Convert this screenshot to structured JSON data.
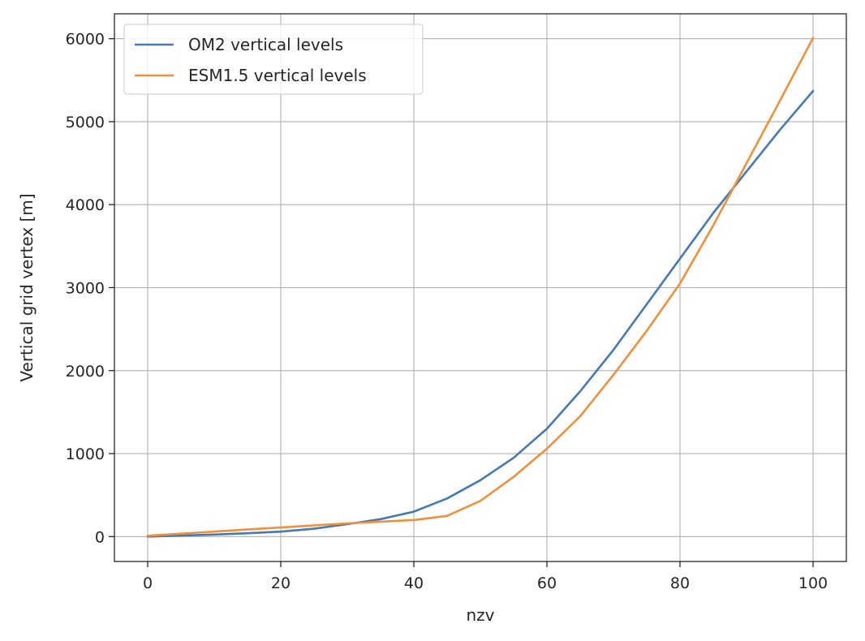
{
  "chart_data": {
    "type": "line",
    "title": "",
    "xlabel": "nzv",
    "ylabel": "Vertical grid vertex [m]",
    "xlim": [
      -5,
      105
    ],
    "ylim": [
      -300,
      6300
    ],
    "xticks": [
      0,
      20,
      40,
      60,
      80,
      100
    ],
    "yticks": [
      0,
      1000,
      2000,
      3000,
      4000,
      5000,
      6000
    ],
    "grid": true,
    "legend_position": "upper-left",
    "series": [
      {
        "name": "OM2 vertical levels",
        "color": "#4679b0",
        "x": [
          0,
          5,
          10,
          15,
          20,
          25,
          30,
          35,
          40,
          45,
          50,
          55,
          60,
          65,
          70,
          75,
          80,
          85,
          90,
          95,
          100
        ],
        "y": [
          0,
          12,
          25,
          40,
          60,
          95,
          150,
          210,
          300,
          460,
          680,
          950,
          1300,
          1750,
          2250,
          2800,
          3350,
          3900,
          4400,
          4900,
          5370
        ]
      },
      {
        "name": "ESM1.5 vertical levels",
        "color": "#f0903a",
        "x": [
          0,
          5,
          10,
          15,
          20,
          25,
          30,
          35,
          40,
          45,
          50,
          55,
          60,
          65,
          70,
          75,
          80,
          85,
          90,
          95,
          100
        ],
        "y": [
          10,
          35,
          60,
          85,
          110,
          135,
          160,
          180,
          200,
          250,
          430,
          720,
          1060,
          1450,
          1950,
          2480,
          3050,
          3750,
          4500,
          5250,
          6010
        ]
      }
    ]
  }
}
